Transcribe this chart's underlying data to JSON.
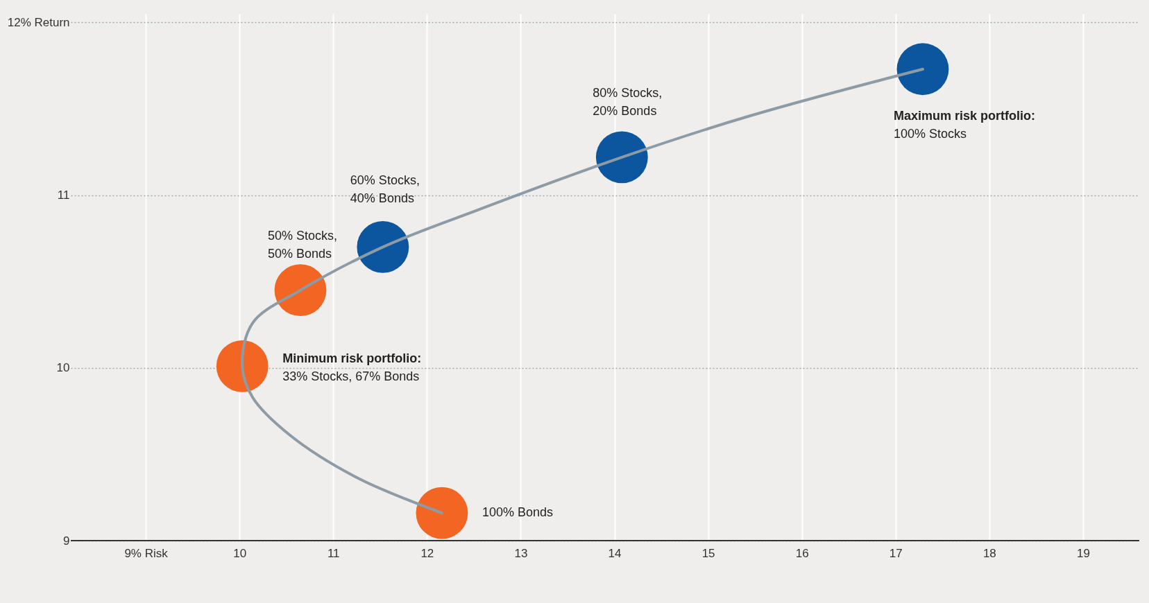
{
  "chart_data": {
    "type": "line",
    "xlim": [
      8.2,
      19.6
    ],
    "ylim": [
      9,
      12.05
    ],
    "xticks": [
      {
        "value": 9,
        "label": "9% Risk"
      },
      10,
      11,
      12,
      13,
      14,
      15,
      16,
      17,
      18,
      19
    ],
    "yticks": [
      9,
      10,
      11,
      {
        "value": 12,
        "label": "12% Return"
      }
    ],
    "grid": true,
    "series": [
      {
        "color": "#8c9ba5",
        "x": [
          12.16,
          11.27,
          10.54,
          10.14,
          10.03,
          10.14,
          10.65,
          11.53,
          12.52,
          14.08,
          15.45,
          17.29
        ],
        "values": [
          9.16,
          9.36,
          9.61,
          9.83,
          10.01,
          10.26,
          10.45,
          10.7,
          10.91,
          11.22,
          11.46,
          11.73
        ]
      },
      {
        "type": "scatter",
        "marker": "circle",
        "x": [
          12.16,
          10.03,
          10.65,
          11.53,
          14.08,
          17.29
        ],
        "values": [
          9.16,
          10.01,
          10.45,
          10.7,
          11.22,
          11.73
        ],
        "colors": [
          "#f26522",
          "#f26522",
          "#f26522",
          "#0c56a0",
          "#0c56a0",
          "#0c56a0"
        ]
      }
    ],
    "annotations": [
      "100% Bonds",
      "Minimum risk portfolio:\n33% Stocks, 67% Bonds",
      "50% Stocks,\n50% Bonds",
      "60% Stocks,\n40% Bonds",
      "80% Stocks,\n20% Bonds",
      "Maximum risk portfolio:\n100% Stocks"
    ]
  }
}
